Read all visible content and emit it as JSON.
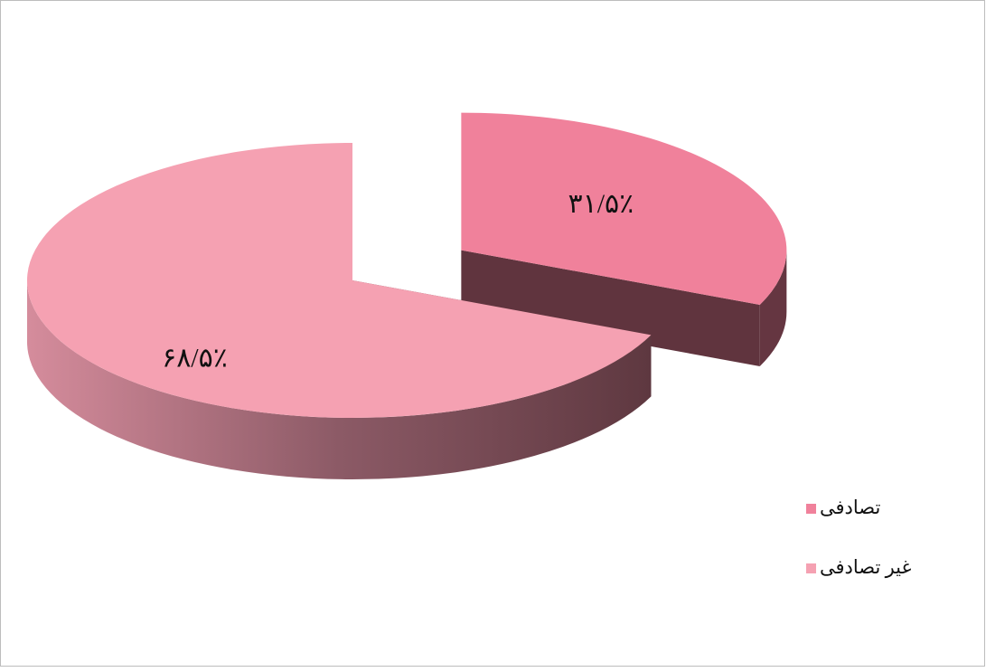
{
  "chart_data": {
    "type": "pie3d",
    "categories": [
      "تصادفی",
      "غیر تصادفی"
    ],
    "values": [
      31.5,
      68.5
    ],
    "value_labels": [
      "۳۱/۵٪",
      "۶۸/۵٪"
    ],
    "colors": [
      "#f0819b",
      "#f5a1b2"
    ],
    "legend": "right"
  }
}
